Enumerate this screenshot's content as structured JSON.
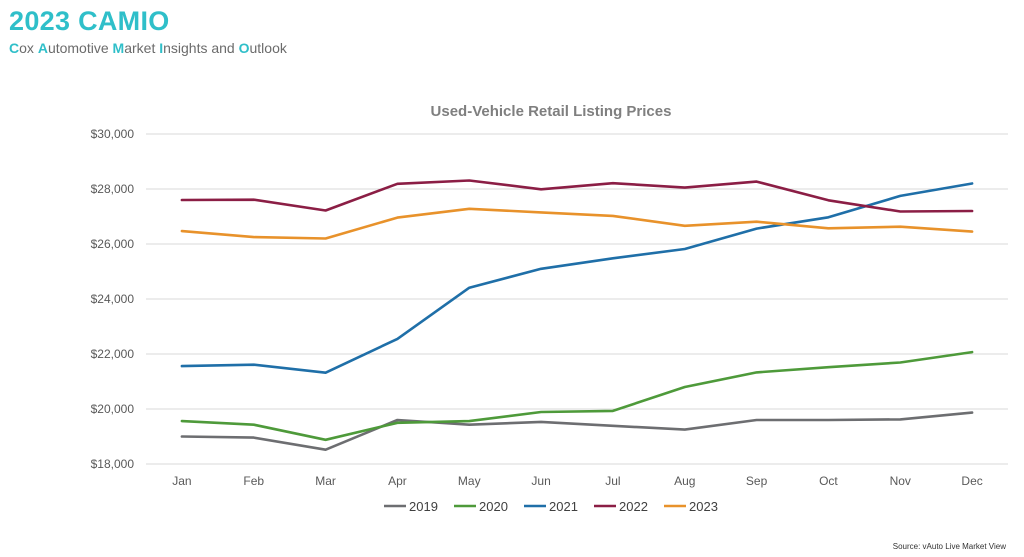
{
  "header": {
    "title": "2023 CAMIO",
    "subtitle_words": [
      {
        "initial": "C",
        "rest": "ox "
      },
      {
        "initial": "A",
        "rest": "utomotive "
      },
      {
        "initial": "M",
        "rest": "arket "
      },
      {
        "initial": "I",
        "rest": "nsights and "
      },
      {
        "initial": "O",
        "rest": "utlook"
      }
    ]
  },
  "source": "Source: vAuto Live Market View",
  "colors": {
    "brand": "#2fbfc9",
    "2019": "#6d6e71",
    "2020": "#4e9a3a",
    "2021": "#1f6fa8",
    "2022": "#8b1e45",
    "2023": "#e8922b"
  },
  "chart_data": {
    "type": "line",
    "title": "Used-Vehicle Retail Listing Prices",
    "xlabel": "",
    "ylabel": "",
    "categories": [
      "Jan",
      "Feb",
      "Mar",
      "Apr",
      "May",
      "Jun",
      "Jul",
      "Aug",
      "Sep",
      "Oct",
      "Nov",
      "Dec"
    ],
    "ylim": [
      18000,
      30000
    ],
    "yticks": [
      18000,
      20000,
      22000,
      24000,
      26000,
      28000,
      30000
    ],
    "ytick_labels": [
      "$18,000",
      "$20,000",
      "$22,000",
      "$24,000",
      "$26,000",
      "$28,000",
      "$30,000"
    ],
    "grid": true,
    "legend_position": "bottom",
    "series": [
      {
        "name": "2019",
        "color": "#6d6e71",
        "values": [
          19000,
          18960,
          18520,
          19600,
          19430,
          19530,
          19390,
          19250,
          19600,
          19600,
          19620,
          19870
        ]
      },
      {
        "name": "2020",
        "color": "#4e9a3a",
        "values": [
          19560,
          19430,
          18880,
          19500,
          19560,
          19890,
          19930,
          20800,
          21330,
          21520,
          21690,
          22070
        ]
      },
      {
        "name": "2021",
        "color": "#1f6fa8",
        "values": [
          21560,
          21610,
          21320,
          22550,
          24410,
          25100,
          25480,
          25820,
          26560,
          26970,
          27750,
          28200
        ]
      },
      {
        "name": "2022",
        "color": "#8b1e45",
        "values": [
          27600,
          27610,
          27220,
          28190,
          28310,
          27990,
          28210,
          28050,
          28270,
          27590,
          27180,
          27200
        ]
      },
      {
        "name": "2023",
        "color": "#e8922b",
        "values": [
          26470,
          26250,
          26200,
          26960,
          27280,
          27150,
          27020,
          26660,
          26810,
          26570,
          26630,
          26450
        ]
      }
    ]
  }
}
